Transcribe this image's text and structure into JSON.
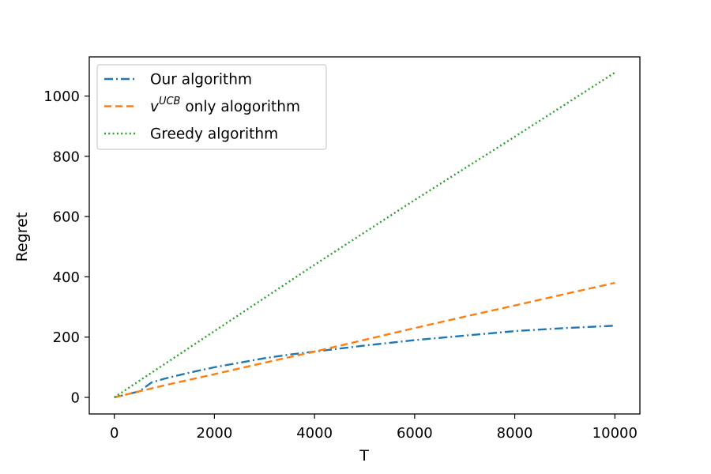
{
  "chart_data": {
    "type": "line",
    "title": "",
    "xlabel": "T",
    "ylabel": "Regret",
    "xlim": [
      -500,
      10500
    ],
    "ylim": [
      -55,
      1130
    ],
    "xticks": [
      0,
      2000,
      4000,
      6000,
      8000,
      10000
    ],
    "xtick_labels": [
      "0",
      "2000",
      "4000",
      "6000",
      "8000",
      "10000"
    ],
    "yticks": [
      0,
      200,
      400,
      600,
      800,
      1000
    ],
    "ytick_labels": [
      "0",
      "200",
      "400",
      "600",
      "800",
      "1000"
    ],
    "grid": false,
    "legend_position": "top-left",
    "series": [
      {
        "name": "Our algorithm",
        "name_base": "Our algorithm",
        "color": "#1f77b4",
        "line_style": "dash-dot",
        "x": [
          0,
          500,
          750,
          1000,
          1500,
          2000,
          2500,
          3000,
          3500,
          4000,
          5000,
          6000,
          7000,
          8000,
          9000,
          10000
        ],
        "y": [
          0,
          20,
          50,
          62,
          82,
          100,
          115,
          130,
          142,
          152,
          172,
          190,
          205,
          220,
          230,
          238
        ]
      },
      {
        "name": "v^UCB only alogorithm",
        "name_base": "v",
        "name_sup": "UCB",
        "name_suffix": " only alogorithm",
        "color": "#ff7f0e",
        "line_style": "dashed",
        "x": [
          0,
          1000,
          2000,
          3000,
          4000,
          5000,
          6000,
          7000,
          8000,
          9000,
          10000
        ],
        "y": [
          0,
          40,
          77,
          115,
          152,
          191,
          230,
          268,
          305,
          343,
          380
        ]
      },
      {
        "name": "Greedy algorithm",
        "name_base": "Greedy algorithm",
        "color": "#2ca02c",
        "line_style": "dotted",
        "x": [
          0,
          2000,
          4000,
          6000,
          8000,
          10000
        ],
        "y": [
          0,
          220,
          440,
          655,
          865,
          1078
        ]
      }
    ]
  }
}
